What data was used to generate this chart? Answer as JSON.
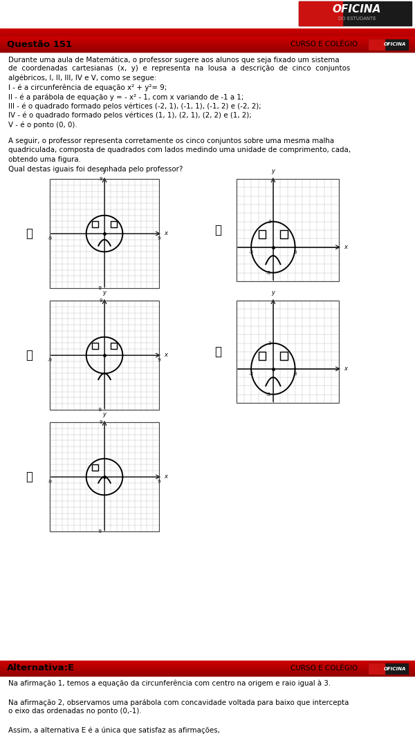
{
  "bg_color": "#ffffff",
  "q_lines": [
    "Durante uma aula de Matemática, o professor sugere aos alunos que seja fixado um sistema",
    "de  coordenadas  cartesianas  (x,  y)  e  representa  na  lousa  a  descrição  de  cinco  conjuntos",
    "algébricos, I, II, III, IV e V, como se segue:",
    "I - é a circunferência de equação x² + y²= 9;",
    "II - é a parábola de equação y = - x² - 1, com x variando de -1 a 1;",
    "III - é o quadrado formado pelos vértices (-2, 1), (-1, 1), (-1, 2) e (-2, 2);",
    "IV - é o quadrado formado pelos vértices (1, 1), (2, 1), (2, 2) e (1, 2);",
    "V - é o ponto (0, 0)."
  ],
  "q2_lines": [
    "A seguir, o professor representa corretamente os cinco conjuntos sobre uma mesma malha",
    "quadriculada, composta de quadrados com lados medindo uma unidade de comprimento, cada,",
    "obtendo uma figura.",
    "Qual destas iguais foi desenhada pelo professor?"
  ],
  "exp_lines": [
    "Na afirmação 1, temos a equação da circunferência com centro na origem e raio igual à 3.",
    "",
    "Na afirmação 2, observamos uma parábola com concavidade voltada para baixo que intercepta",
    "o eixo das ordenadas no ponto (0,-1).",
    "",
    "Assim, a alternativa E é a única que satisfaz as afirmações,"
  ],
  "alt_text": "Alternativa:E",
  "curso_text": "CURSO E COLÉGIO",
  "questao_text": "Questão 151"
}
